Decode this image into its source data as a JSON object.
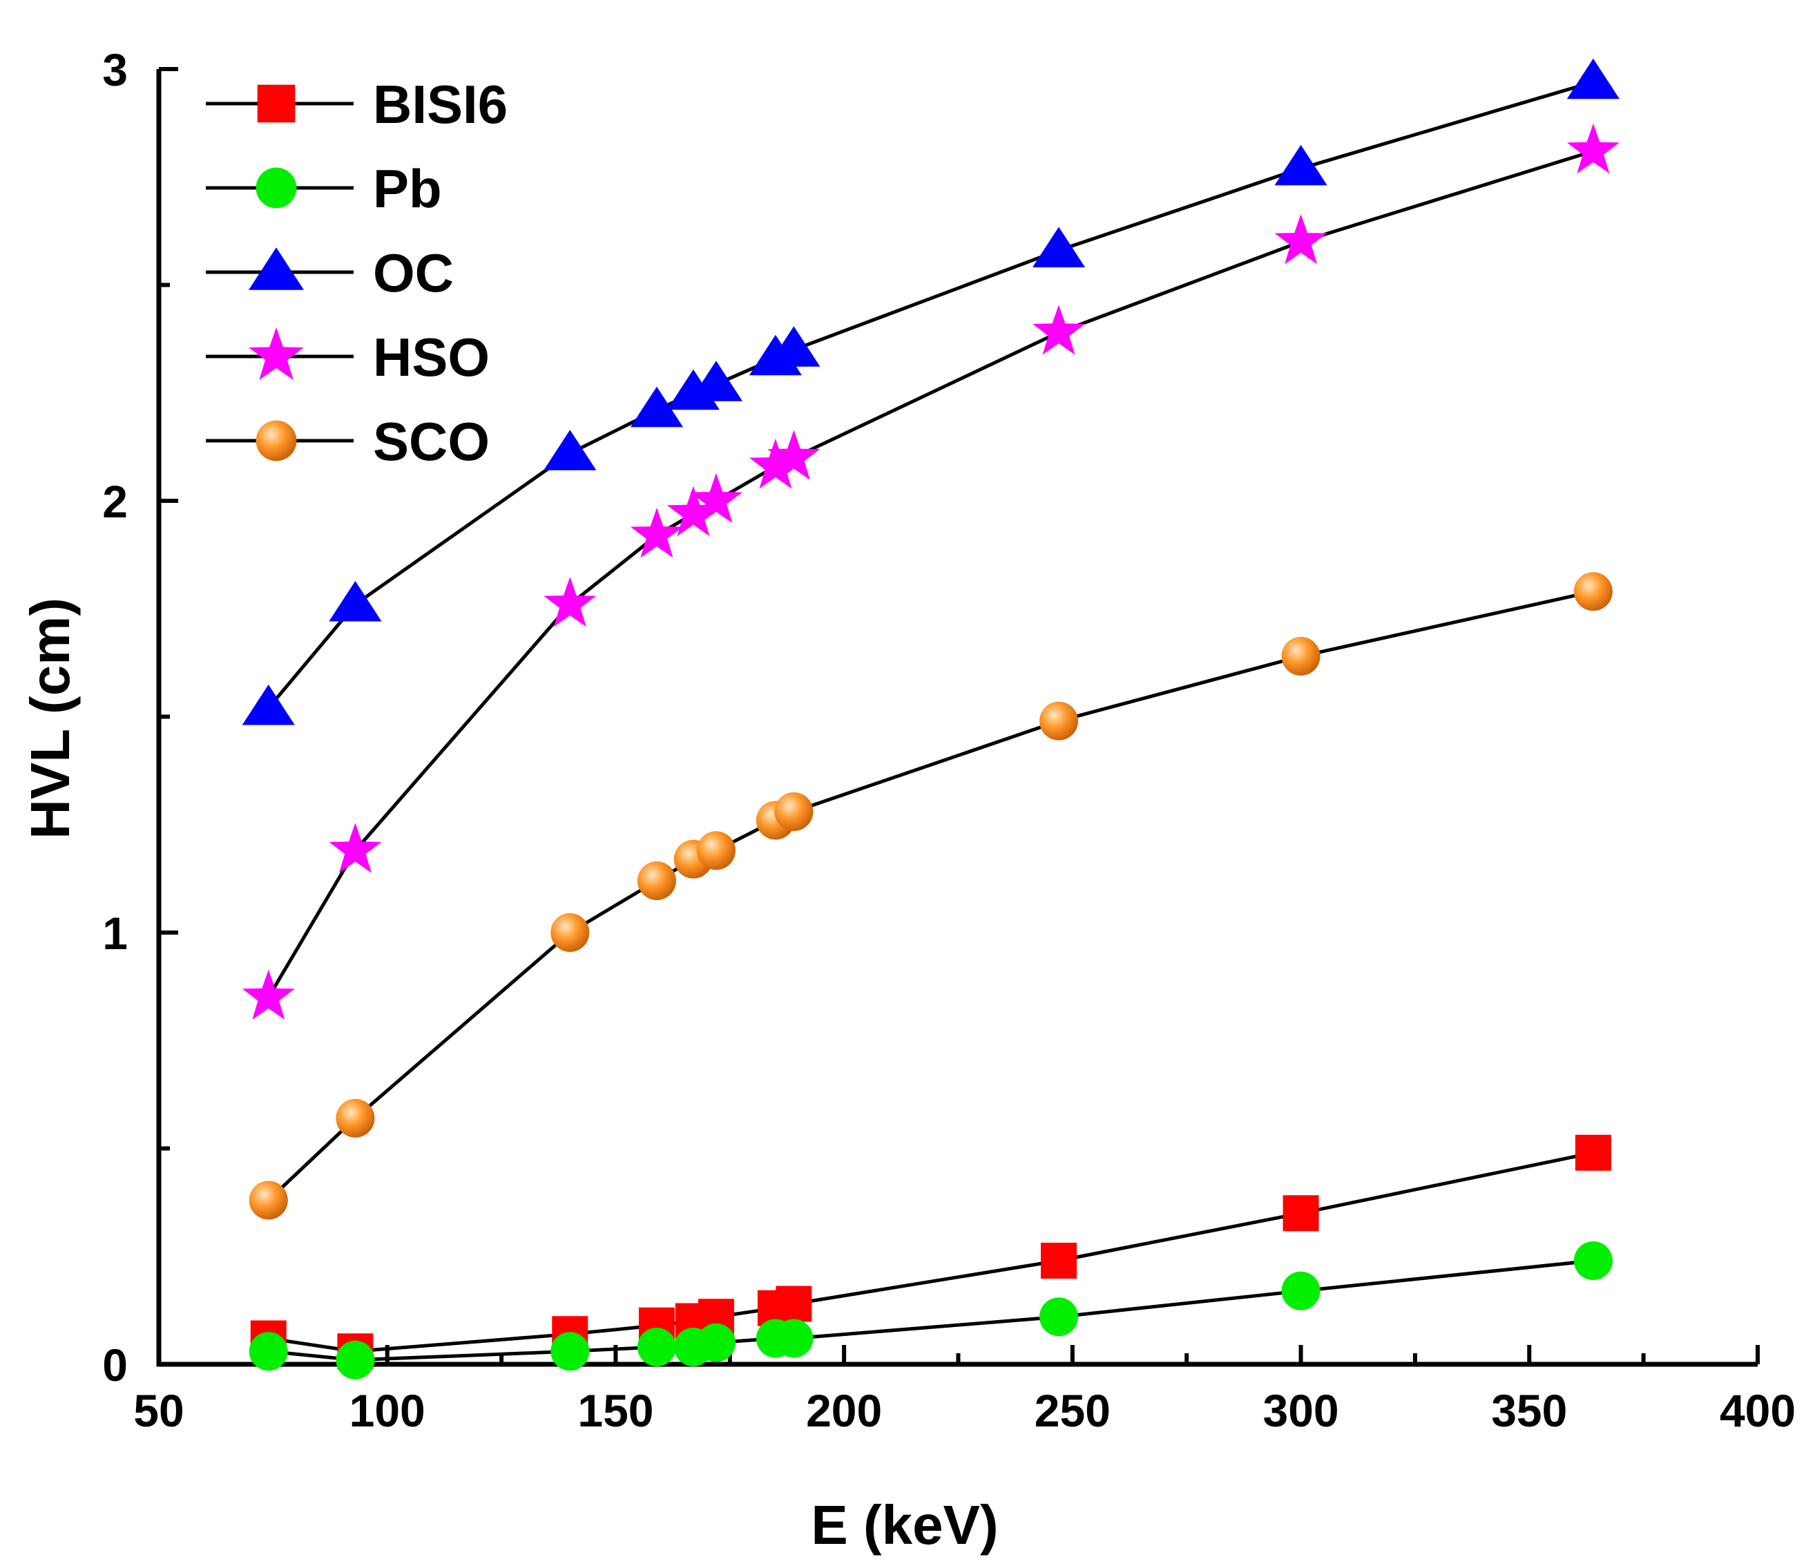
{
  "chart_data": {
    "type": "line",
    "title": "",
    "xlabel": "E (keV)",
    "ylabel": "HVL (cm)",
    "xlim": [
      50,
      400
    ],
    "ylim": [
      0,
      3
    ],
    "x_ticks": [
      50,
      100,
      150,
      200,
      250,
      300,
      350,
      400
    ],
    "y_ticks": [
      0,
      1,
      2,
      3
    ],
    "grid": false,
    "legend_position": "top-left",
    "series": [
      {
        "name": "BISI6",
        "marker": "square",
        "color": "#ff0000",
        "x": [
          74,
          93,
          140,
          159,
          167,
          172,
          185,
          189,
          247,
          300,
          364
        ],
        "y": [
          0.06,
          0.03,
          0.07,
          0.09,
          0.1,
          0.11,
          0.13,
          0.14,
          0.24,
          0.35,
          0.49
        ]
      },
      {
        "name": "Pb",
        "marker": "circle",
        "color": "#00ee00",
        "x": [
          74,
          93,
          140,
          159,
          167,
          172,
          185,
          189,
          247,
          300,
          364
        ],
        "y": [
          0.03,
          0.01,
          0.03,
          0.04,
          0.04,
          0.05,
          0.06,
          0.06,
          0.11,
          0.17,
          0.24
        ]
      },
      {
        "name": "OC",
        "marker": "triangle",
        "color": "#0000ff",
        "x": [
          74,
          93,
          140,
          159,
          167,
          172,
          185,
          189,
          247,
          300,
          364
        ],
        "y": [
          1.52,
          1.76,
          2.11,
          2.21,
          2.25,
          2.27,
          2.33,
          2.35,
          2.58,
          2.77,
          2.97
        ]
      },
      {
        "name": "HSO",
        "marker": "star",
        "color": "#ff00ff",
        "x": [
          74,
          93,
          140,
          159,
          167,
          172,
          185,
          189,
          247,
          300,
          364
        ],
        "y": [
          0.85,
          1.19,
          1.76,
          1.92,
          1.97,
          2.0,
          2.08,
          2.1,
          2.39,
          2.6,
          2.81
        ]
      },
      {
        "name": "SCO",
        "marker": "circle",
        "color": "#ff9a2e",
        "x": [
          74,
          93,
          140,
          159,
          167,
          172,
          185,
          189,
          247,
          300,
          364
        ],
        "y": [
          0.38,
          0.57,
          1.0,
          1.12,
          1.17,
          1.19,
          1.26,
          1.28,
          1.49,
          1.64,
          1.79
        ]
      }
    ]
  }
}
